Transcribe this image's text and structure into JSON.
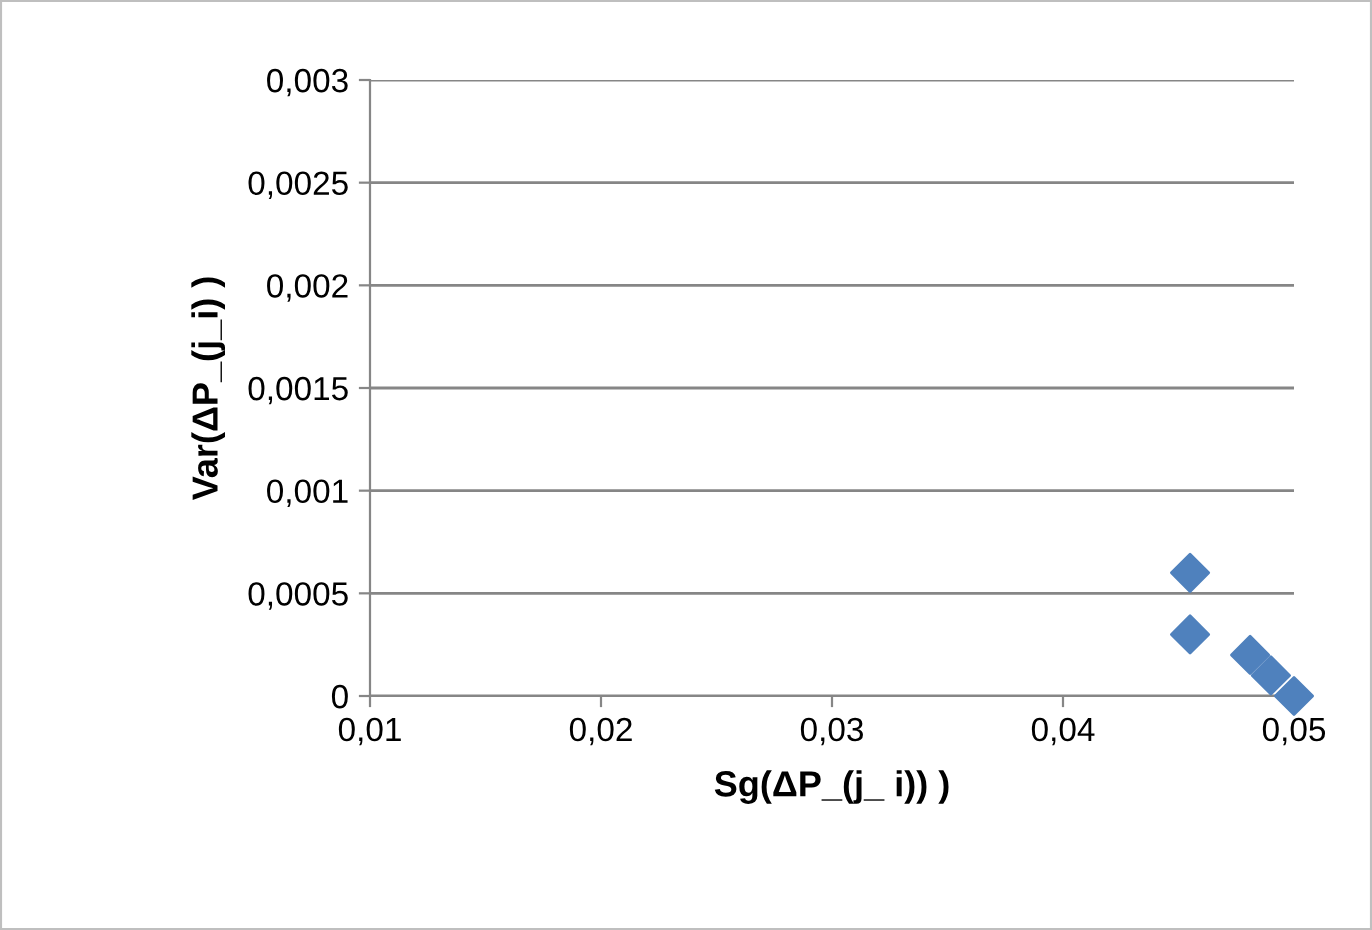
{
  "chart_data": {
    "type": "scatter",
    "xlabel": "Sg(ΔP_(j_ i)) )",
    "ylabel": "Var(ΔP_(j_i) )",
    "series": [
      {
        "color": "#4f81bd",
        "x": [
          0.0455,
          0.0455,
          0.0481,
          0.049,
          0.05
        ],
        "values": [
          0.0006,
          0.0003,
          0.0002,
          0.0001,
          0
        ]
      }
    ],
    "marker": "diamond",
    "xlim": [
      0.01,
      0.05
    ],
    "ylim": [
      0,
      0.003
    ],
    "xticks": [
      {
        "value": 0.01,
        "label": "0,01"
      },
      {
        "value": 0.02,
        "label": "0,02"
      },
      {
        "value": 0.03,
        "label": "0,03"
      },
      {
        "value": 0.04,
        "label": "0,04"
      },
      {
        "value": 0.05,
        "label": "0,05"
      }
    ],
    "yticks": [
      {
        "value": 0,
        "label": "0"
      },
      {
        "value": 0.0005,
        "label": "0,0005"
      },
      {
        "value": 0.001,
        "label": "0,001"
      },
      {
        "value": 0.0015,
        "label": "0,0015"
      },
      {
        "value": 0.002,
        "label": "0,002"
      },
      {
        "value": 0.0025,
        "label": "0,0025"
      },
      {
        "value": 0.003,
        "label": "0,003"
      }
    ],
    "grid": "y",
    "legend": false
  }
}
